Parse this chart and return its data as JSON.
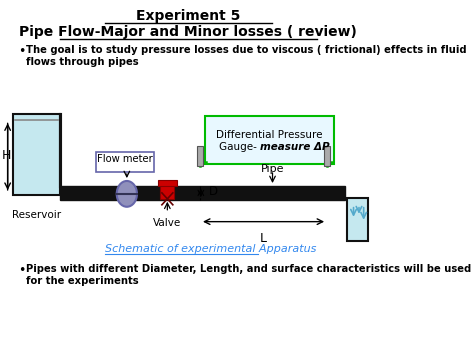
{
  "title_line1": "Experiment 5",
  "title_line2": "Pipe Flow-Major and Minor losses ( review)",
  "bullet1_text": "The goal is to study pressure losses due to viscous ( frictional) effects in fluid\nflows through pipes",
  "bullet2_text": "Pipes with different Diameter, Length, and surface characteristics will be used\nfor the experiments",
  "schematic_label": "Schematic of experimental Apparatus",
  "label_reservoir": "Reservoir",
  "label_valve": "Valve",
  "label_flowmeter": "Flow meter",
  "label_pipe": "Pipe",
  "label_H": "H",
  "label_D": "D",
  "label_L": "L",
  "label_gauge_normal": "Gauge- ",
  "label_gauge_line1": "Differential Pressure",
  "label_gauge_line2": "Gauge- measure ΔP",
  "bg_color": "#ffffff",
  "pipe_color": "#111111",
  "reservoir_fill": "#c5e8ef",
  "gauge_box_fill": "#e8f8ff",
  "gauge_line_color": "#00bb00",
  "flowmeter_circle_color": "#9090bb",
  "flowmeter_circle_edge": "#6666aa",
  "valve_color": "#cc0000",
  "small_tank_fill": "#c5e8ef",
  "text_color": "#000000",
  "schematic_link_color": "#3388ee",
  "tap_color": "#888888",
  "arrow_color": "#55aacc"
}
